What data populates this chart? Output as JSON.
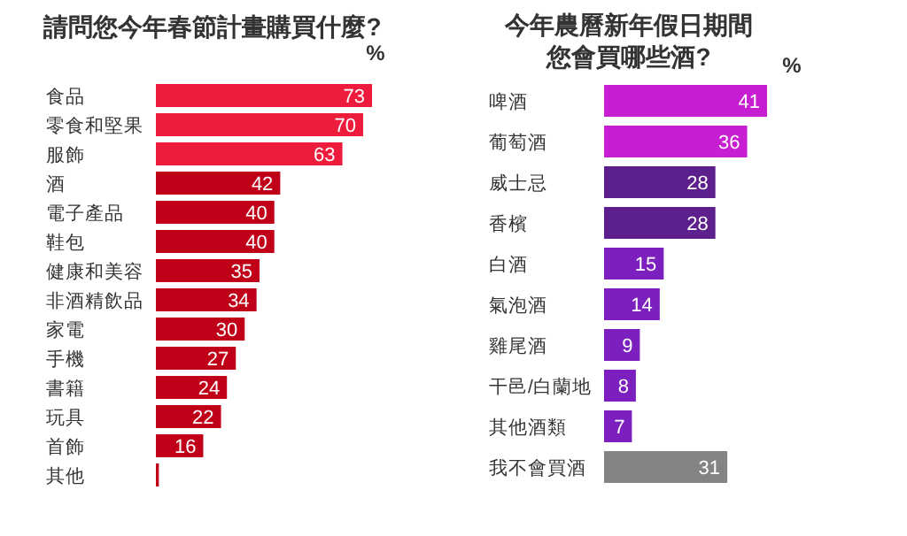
{
  "chart_data": [
    {
      "type": "bar",
      "orientation": "horizontal",
      "title": "請問您今年春節計畫購買什麼?",
      "xlabel": "%",
      "categories": [
        "食品",
        "零食和堅果",
        "服飾",
        "酒",
        "電子產品",
        "鞋包",
        "健康和美容",
        "非酒精飲品",
        "家電",
        "手機",
        "書籍",
        "玩具",
        "首飾",
        "其他"
      ],
      "values": [
        73,
        70,
        63,
        42,
        40,
        40,
        35,
        34,
        30,
        27,
        24,
        22,
        16,
        1
      ],
      "value_labels": [
        "73",
        "70",
        "63",
        "42",
        "40",
        "40",
        "35",
        "34",
        "30",
        "27",
        "24",
        "22",
        "16",
        null
      ],
      "colors": [
        "#ee1c3c",
        "#ee1c3c",
        "#ee1c3c",
        "#c00018",
        "#c00018",
        "#c00018",
        "#c00018",
        "#c00018",
        "#c00018",
        "#c00018",
        "#c00018",
        "#c00018",
        "#c00018",
        "#c00018"
      ]
    },
    {
      "type": "bar",
      "orientation": "horizontal",
      "title": "今年農曆新年假日期間",
      "subtitle": "您會買哪些酒?",
      "xlabel": "%",
      "categories": [
        "啤酒",
        "葡萄酒",
        "威士忌",
        "香檳",
        "白酒",
        "氣泡酒",
        "雞尾酒",
        "干邑/白蘭地",
        "其他酒類",
        "我不會買酒"
      ],
      "values": [
        41,
        36,
        28,
        28,
        15,
        14,
        9,
        8,
        7,
        31
      ],
      "data_labels": true,
      "colors": [
        "#c81ed2",
        "#c81ed2",
        "#5c1f8c",
        "#5c1f8c",
        "#7b1fbe",
        "#7b1fbe",
        "#7b1fbe",
        "#7b1fbe",
        "#7b1fbe",
        "#848484"
      ]
    }
  ]
}
